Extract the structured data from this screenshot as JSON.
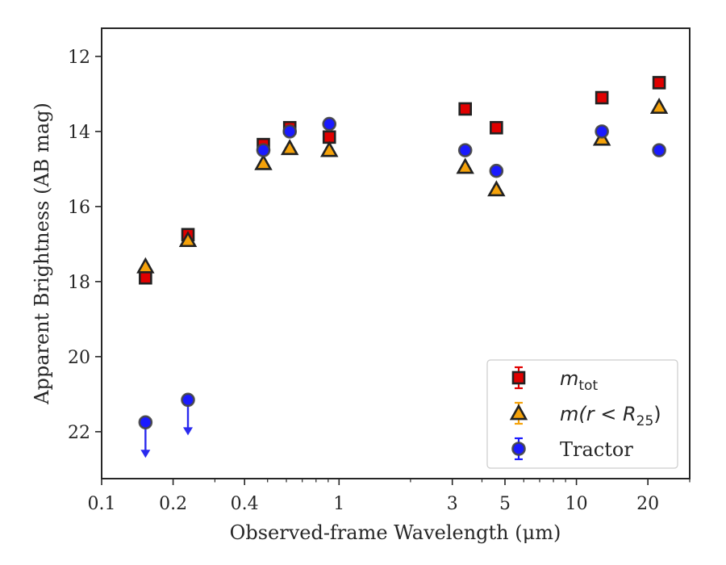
{
  "chart_data": {
    "type": "scatter",
    "xlabel": "Observed-frame Wavelength (μm)",
    "ylabel": "Apparent Brightness (AB mag)",
    "x_scale": "log",
    "xlim": [
      0.1,
      30
    ],
    "ylim": [
      23.25,
      11.25
    ],
    "y_inverted": true,
    "x_ticks": [
      0.1,
      0.2,
      0.4,
      1,
      3,
      5,
      10,
      20
    ],
    "x_tick_labels": [
      "0.1",
      "0.2",
      "0.4",
      "1",
      "3",
      "5",
      "10",
      "20"
    ],
    "y_ticks": [
      12,
      14,
      16,
      18,
      20,
      22
    ],
    "y_tick_labels": [
      "12",
      "14",
      "16",
      "18",
      "20",
      "22"
    ],
    "grid": false,
    "legend": {
      "position": "lower-right",
      "entries": [
        {
          "label_main": "m",
          "label_sub": "tot",
          "marker": "square",
          "color": "#e00000"
        },
        {
          "label_text": "m(r < R",
          "label_sub": "25",
          "label_close": ")",
          "marker": "triangle",
          "color": "#f5a20a"
        },
        {
          "label_text": "Tractor",
          "marker": "circle",
          "color": "#1a1aff"
        }
      ]
    },
    "series": [
      {
        "name": "m_tot",
        "marker": "square",
        "color": "#e00000",
        "points": [
          {
            "x": 0.153,
            "y": 17.9
          },
          {
            "x": 0.231,
            "y": 16.75
          },
          {
            "x": 0.48,
            "y": 14.35
          },
          {
            "x": 0.62,
            "y": 13.9
          },
          {
            "x": 0.91,
            "y": 14.15
          },
          {
            "x": 3.4,
            "y": 13.4
          },
          {
            "x": 4.6,
            "y": 13.9
          },
          {
            "x": 12.8,
            "y": 13.1
          },
          {
            "x": 22.3,
            "y": 12.7
          }
        ]
      },
      {
        "name": "m(r < R25)",
        "marker": "triangle",
        "color": "#f5a20a",
        "points": [
          {
            "x": 0.153,
            "y": 17.6
          },
          {
            "x": 0.231,
            "y": 16.9
          },
          {
            "x": 0.48,
            "y": 14.85
          },
          {
            "x": 0.62,
            "y": 14.45
          },
          {
            "x": 0.91,
            "y": 14.5
          },
          {
            "x": 3.4,
            "y": 14.95
          },
          {
            "x": 4.6,
            "y": 15.55
          },
          {
            "x": 12.8,
            "y": 14.2
          },
          {
            "x": 22.3,
            "y": 13.35
          }
        ]
      },
      {
        "name": "Tractor",
        "marker": "circle",
        "color": "#1a1aff",
        "points": [
          {
            "x": 0.153,
            "y": 21.75,
            "upper_limit": true
          },
          {
            "x": 0.231,
            "y": 21.15,
            "upper_limit": true
          },
          {
            "x": 0.48,
            "y": 14.5
          },
          {
            "x": 0.62,
            "y": 14.0
          },
          {
            "x": 0.91,
            "y": 13.8
          },
          {
            "x": 3.4,
            "y": 14.5
          },
          {
            "x": 4.6,
            "y": 15.05
          },
          {
            "x": 12.8,
            "y": 14.0
          },
          {
            "x": 22.3,
            "y": 14.5
          }
        ]
      }
    ]
  }
}
